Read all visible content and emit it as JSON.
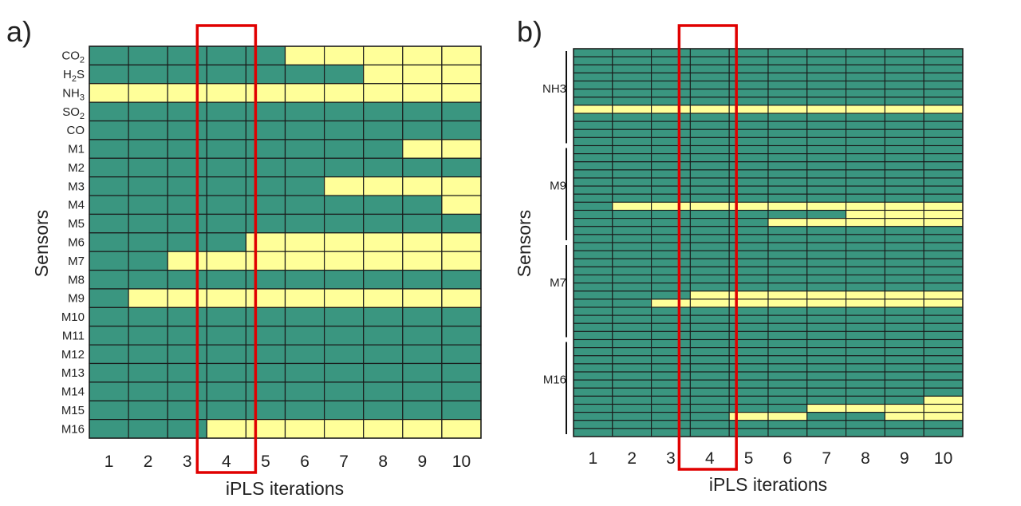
{
  "colors": {
    "selected": "#FFFF99",
    "not_selected": "#3A9680",
    "highlight": "#E00000",
    "grid": "#1a1a1a"
  },
  "chart_data": [
    {
      "type": "heatmap",
      "panel_label": "a)",
      "xlabel": "iPLS iterations",
      "ylabel": "Sensors",
      "x_categories": [
        "1",
        "2",
        "3",
        "4",
        "5",
        "6",
        "7",
        "8",
        "9",
        "10"
      ],
      "y_categories": [
        "CO2",
        "H2S",
        "NH3",
        "SO2",
        "CO",
        "M1",
        "M2",
        "M3",
        "M4",
        "M5",
        "M6",
        "M7",
        "M8",
        "M9",
        "M10",
        "M11",
        "M12",
        "M13",
        "M14",
        "M15",
        "M16"
      ],
      "encoding": "1 = yellow, 0 = green",
      "matrix": [
        [
          0,
          0,
          0,
          0,
          0,
          1,
          1,
          1,
          1,
          1
        ],
        [
          0,
          0,
          0,
          0,
          0,
          0,
          0,
          1,
          1,
          1
        ],
        [
          1,
          1,
          1,
          1,
          1,
          1,
          1,
          1,
          1,
          1
        ],
        [
          0,
          0,
          0,
          0,
          0,
          0,
          0,
          0,
          0,
          0
        ],
        [
          0,
          0,
          0,
          0,
          0,
          0,
          0,
          0,
          0,
          0
        ],
        [
          0,
          0,
          0,
          0,
          0,
          0,
          0,
          0,
          1,
          1
        ],
        [
          0,
          0,
          0,
          0,
          0,
          0,
          0,
          0,
          0,
          0
        ],
        [
          0,
          0,
          0,
          0,
          0,
          0,
          1,
          1,
          1,
          1
        ],
        [
          0,
          0,
          0,
          0,
          0,
          0,
          0,
          0,
          0,
          1
        ],
        [
          0,
          0,
          0,
          0,
          0,
          0,
          0,
          0,
          0,
          0
        ],
        [
          0,
          0,
          0,
          0,
          1,
          1,
          1,
          1,
          1,
          1
        ],
        [
          0,
          0,
          1,
          1,
          1,
          1,
          1,
          1,
          1,
          1
        ],
        [
          0,
          0,
          0,
          0,
          0,
          0,
          0,
          0,
          0,
          0
        ],
        [
          0,
          1,
          1,
          1,
          1,
          1,
          1,
          1,
          1,
          1
        ],
        [
          0,
          0,
          0,
          0,
          0,
          0,
          0,
          0,
          0,
          0
        ],
        [
          0,
          0,
          0,
          0,
          0,
          0,
          0,
          0,
          0,
          0
        ],
        [
          0,
          0,
          0,
          0,
          0,
          0,
          0,
          0,
          0,
          0
        ],
        [
          0,
          0,
          0,
          0,
          0,
          0,
          0,
          0,
          0,
          0
        ],
        [
          0,
          0,
          0,
          0,
          0,
          0,
          0,
          0,
          0,
          0
        ],
        [
          0,
          0,
          0,
          0,
          0,
          0,
          0,
          0,
          0,
          0
        ],
        [
          0,
          0,
          0,
          1,
          1,
          1,
          1,
          1,
          1,
          1
        ]
      ],
      "highlight_column": "4"
    },
    {
      "type": "heatmap",
      "panel_label": "b)",
      "xlabel": "iPLS iterations",
      "ylabel": "Sensors",
      "x_categories": [
        "1",
        "2",
        "3",
        "4",
        "5",
        "6",
        "7",
        "8",
        "9",
        "10"
      ],
      "group_labels": [
        "NH3",
        "M9",
        "M7",
        "M16"
      ],
      "rows_per_group": 12,
      "encoding": "1 = yellow, 0 = green",
      "matrix": [
        [
          0,
          0,
          0,
          0,
          0,
          0,
          0,
          0,
          0,
          0
        ],
        [
          0,
          0,
          0,
          0,
          0,
          0,
          0,
          0,
          0,
          0
        ],
        [
          0,
          0,
          0,
          0,
          0,
          0,
          0,
          0,
          0,
          0
        ],
        [
          0,
          0,
          0,
          0,
          0,
          0,
          0,
          0,
          0,
          0
        ],
        [
          0,
          0,
          0,
          0,
          0,
          0,
          0,
          0,
          0,
          0
        ],
        [
          0,
          0,
          0,
          0,
          0,
          0,
          0,
          0,
          0,
          0
        ],
        [
          0,
          0,
          0,
          0,
          0,
          0,
          0,
          0,
          0,
          0
        ],
        [
          1,
          1,
          1,
          1,
          1,
          1,
          1,
          1,
          1,
          1
        ],
        [
          0,
          0,
          0,
          0,
          0,
          0,
          0,
          0,
          0,
          0
        ],
        [
          0,
          0,
          0,
          0,
          0,
          0,
          0,
          0,
          0,
          0
        ],
        [
          0,
          0,
          0,
          0,
          0,
          0,
          0,
          0,
          0,
          0
        ],
        [
          0,
          0,
          0,
          0,
          0,
          0,
          0,
          0,
          0,
          0
        ],
        [
          0,
          0,
          0,
          0,
          0,
          0,
          0,
          0,
          0,
          0
        ],
        [
          0,
          0,
          0,
          0,
          0,
          0,
          0,
          0,
          0,
          0
        ],
        [
          0,
          0,
          0,
          0,
          0,
          0,
          0,
          0,
          0,
          0
        ],
        [
          0,
          0,
          0,
          0,
          0,
          0,
          0,
          0,
          0,
          0
        ],
        [
          0,
          0,
          0,
          0,
          0,
          0,
          0,
          0,
          0,
          0
        ],
        [
          0,
          0,
          0,
          0,
          0,
          0,
          0,
          0,
          0,
          0
        ],
        [
          0,
          0,
          0,
          0,
          0,
          0,
          0,
          0,
          0,
          0
        ],
        [
          0,
          1,
          1,
          1,
          1,
          1,
          1,
          1,
          1,
          1
        ],
        [
          0,
          0,
          0,
          0,
          0,
          0,
          0,
          1,
          1,
          1
        ],
        [
          0,
          0,
          0,
          0,
          0,
          1,
          1,
          1,
          1,
          1
        ],
        [
          0,
          0,
          0,
          0,
          0,
          0,
          0,
          0,
          0,
          0
        ],
        [
          0,
          0,
          0,
          0,
          0,
          0,
          0,
          0,
          0,
          0
        ],
        [
          0,
          0,
          0,
          0,
          0,
          0,
          0,
          0,
          0,
          0
        ],
        [
          0,
          0,
          0,
          0,
          0,
          0,
          0,
          0,
          0,
          0
        ],
        [
          0,
          0,
          0,
          0,
          0,
          0,
          0,
          0,
          0,
          0
        ],
        [
          0,
          0,
          0,
          0,
          0,
          0,
          0,
          0,
          0,
          0
        ],
        [
          0,
          0,
          0,
          0,
          0,
          0,
          0,
          0,
          0,
          0
        ],
        [
          0,
          0,
          0,
          0,
          0,
          0,
          0,
          0,
          0,
          0
        ],
        [
          0,
          0,
          0,
          1,
          1,
          1,
          1,
          1,
          1,
          1
        ],
        [
          0,
          0,
          1,
          1,
          1,
          1,
          1,
          1,
          1,
          1
        ],
        [
          0,
          0,
          0,
          0,
          0,
          0,
          0,
          0,
          0,
          0
        ],
        [
          0,
          0,
          0,
          0,
          0,
          0,
          0,
          0,
          0,
          0
        ],
        [
          0,
          0,
          0,
          0,
          0,
          0,
          0,
          0,
          0,
          0
        ],
        [
          0,
          0,
          0,
          0,
          0,
          0,
          0,
          0,
          0,
          0
        ],
        [
          0,
          0,
          0,
          0,
          0,
          0,
          0,
          0,
          0,
          0
        ],
        [
          0,
          0,
          0,
          0,
          0,
          0,
          0,
          0,
          0,
          0
        ],
        [
          0,
          0,
          0,
          0,
          0,
          0,
          0,
          0,
          0,
          0
        ],
        [
          0,
          0,
          0,
          0,
          0,
          0,
          0,
          0,
          0,
          0
        ],
        [
          0,
          0,
          0,
          0,
          0,
          0,
          0,
          0,
          0,
          0
        ],
        [
          0,
          0,
          0,
          0,
          0,
          0,
          0,
          0,
          0,
          0
        ],
        [
          0,
          0,
          0,
          0,
          0,
          0,
          0,
          0,
          0,
          0
        ],
        [
          0,
          0,
          0,
          0,
          0,
          0,
          0,
          0,
          0,
          1
        ],
        [
          0,
          0,
          0,
          0,
          0,
          0,
          1,
          1,
          1,
          1
        ],
        [
          0,
          0,
          0,
          0,
          1,
          1,
          0,
          0,
          1,
          1
        ],
        [
          0,
          0,
          0,
          0,
          0,
          0,
          0,
          0,
          0,
          0
        ],
        [
          0,
          0,
          0,
          0,
          0,
          0,
          0,
          0,
          0,
          0
        ]
      ],
      "highlight_column": "4"
    }
  ]
}
